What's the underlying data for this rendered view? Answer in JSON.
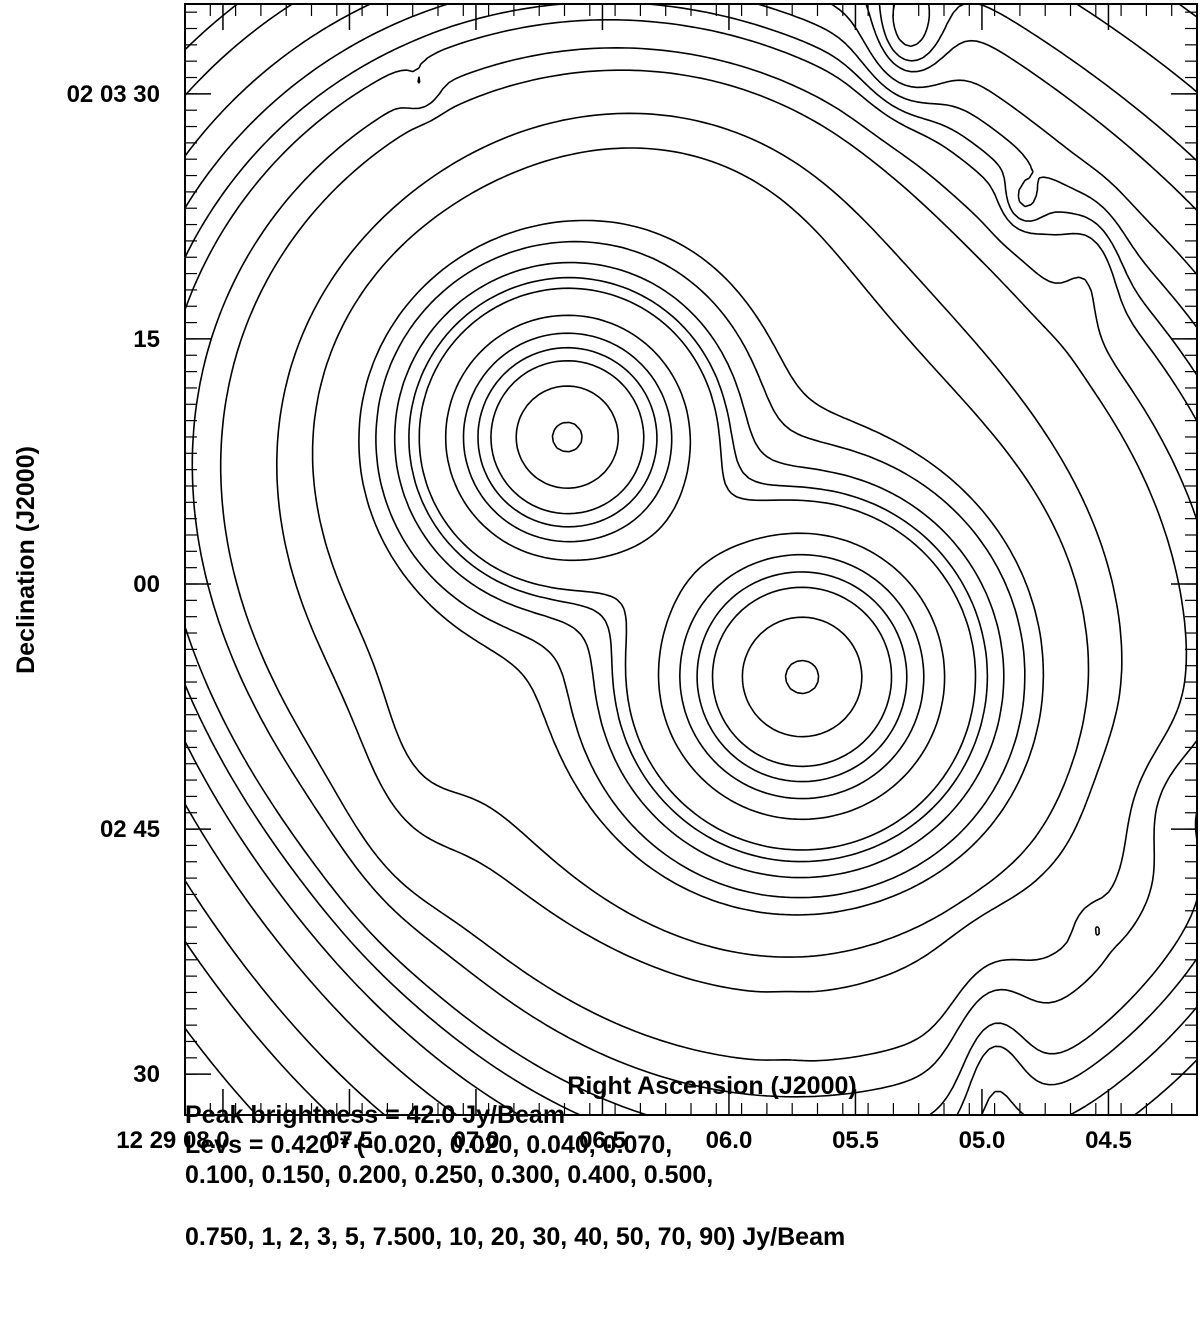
{
  "chart_data": {
    "type": "contour",
    "xlabel": "Right Ascension (J2000)",
    "ylabel": "Declination (J2000)",
    "x_ticks": [
      {
        "label": "12 29 08.0",
        "ra_s": 8.0
      },
      {
        "label": "07.5",
        "ra_s": 7.5
      },
      {
        "label": "07.0",
        "ra_s": 7.0
      },
      {
        "label": "06.5",
        "ra_s": 6.5
      },
      {
        "label": "06.0",
        "ra_s": 6.0
      },
      {
        "label": "05.5",
        "ra_s": 5.5
      },
      {
        "label": "05.0",
        "ra_s": 5.0
      },
      {
        "label": "04.5",
        "ra_s": 4.5
      }
    ],
    "y_ticks": [
      {
        "label": "02 03 30",
        "dec_arcsec": 210
      },
      {
        "label": "15",
        "dec_arcsec": 195
      },
      {
        "label": "00",
        "dec_arcsec": 180
      },
      {
        "label": "02 45",
        "dec_arcsec": 165
      },
      {
        "label": "30",
        "dec_arcsec": 150
      }
    ],
    "xlim_ra_s": [
      8.15,
      4.15
    ],
    "ylim_dec_arcsec": [
      147.5,
      215.5
    ],
    "components": [
      {
        "ra_s": 6.64,
        "dec_arcsec": 189.0,
        "flux_fraction": 0.9
      },
      {
        "ra_s": 5.71,
        "dec_arcsec": 174.3,
        "flux_fraction": 0.9
      }
    ],
    "peak_brightness": "Peak brightness =  42.0 Jy/Beam",
    "levels_base": 0.42,
    "levels": [
      -0.02,
      0.02,
      0.04,
      0.07,
      0.1,
      0.15,
      0.2,
      0.25,
      0.3,
      0.4,
      0.5,
      0.75,
      1,
      2,
      3,
      5,
      7.5,
      10,
      20,
      30,
      40,
      50,
      70,
      90
    ],
    "levels_caption": [
      "Levs = 0.420 * (-0.020, 0.020, 0.040, 0.070,",
      "0.100, 0.150, 0.200, 0.250, 0.300, 0.400, 0.500,",
      "0.750, 1, 2, 3, 5, 7.500, 10, 20, 30, 40, 50, 70, 90) Jy/Beam"
    ]
  }
}
